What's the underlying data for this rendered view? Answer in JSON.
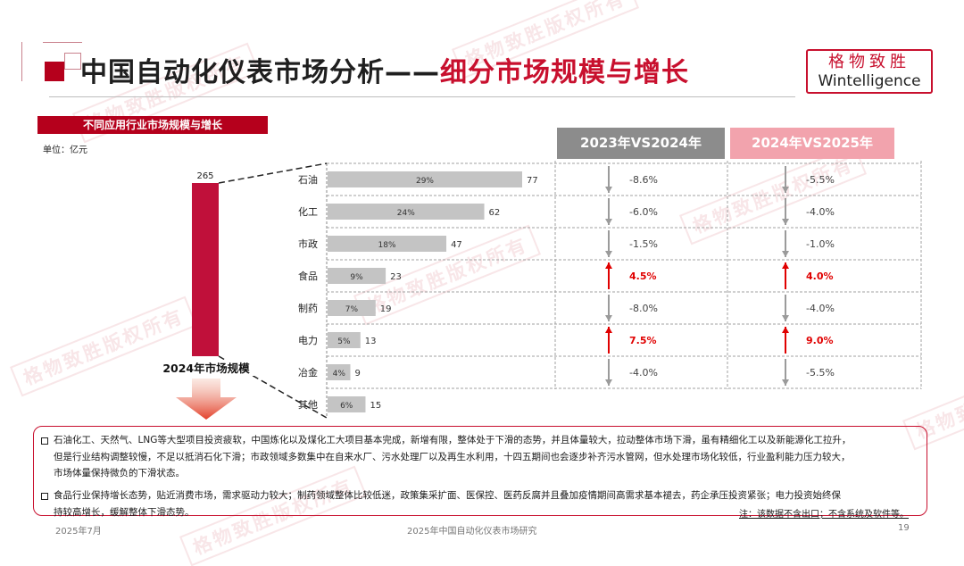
{
  "header": {
    "title_main": "中国自动化仪表市场分析——",
    "title_accent": "细分市场规模与增长",
    "logo_cn": "格物致胜",
    "logo_en": "Wintelligence"
  },
  "watermark_text": "格物致胜版权所有",
  "colors": {
    "accent": "#c8102e",
    "big_bar": "#c0103a",
    "small_bar": "#c4c4c4",
    "down_arrow": "#9b9b9b",
    "up_arrow": "#e00000",
    "col_head_1": "#8c8c8c",
    "col_head_2": "#f2a3ad"
  },
  "chart_data": {
    "type": "bar",
    "title": "不同应用行业市场规模与增长",
    "unit_label": "单位：亿元",
    "total": {
      "label": "2024年市场规模",
      "value": 265
    },
    "categories": [
      "石油",
      "化工",
      "市政",
      "食品",
      "制药",
      "电力",
      "冶金",
      "其他"
    ],
    "values": [
      77,
      62,
      47,
      23,
      19,
      13,
      9,
      15
    ],
    "shares": [
      "29%",
      "24%",
      "18%",
      "9%",
      "7%",
      "5%",
      "4%",
      "6%"
    ],
    "xlim": [
      0,
      77
    ],
    "growth_columns": [
      {
        "header": "2023年VS2024年",
        "values": [
          "-8.6%",
          "-6.0%",
          "-1.5%",
          "4.5%",
          "-8.0%",
          "7.5%",
          "-4.0%",
          ""
        ],
        "directions": [
          "down",
          "down",
          "down",
          "up",
          "down",
          "up",
          "down",
          ""
        ]
      },
      {
        "header": "2024年VS2025年",
        "values": [
          "-5.5%",
          "-4.0%",
          "-1.0%",
          "4.0%",
          "-4.0%",
          "9.0%",
          "-5.5%",
          ""
        ],
        "directions": [
          "down",
          "down",
          "down",
          "up",
          "down",
          "up",
          "down",
          ""
        ]
      }
    ]
  },
  "notes": [
    {
      "lines": [
        "石油化工、天然气、LNG等大型项目投资疲软，中国炼化以及煤化工大项目基本完成，新增有限，整体处于下滑的态势，并且体量较大，拉动整体市场下滑，虽有精细化工以及新能源化工拉升，",
        "但是行业结构调整较慢，不足以抵消石化下滑；市政领域多数集中在自来水厂、污水处理厂以及再生水利用，十四五期间也会逐步补齐污水管网，但水处理市场化较低，行业盈利能力压力较大，",
        "市场体量保持微负的下滑状态。"
      ]
    },
    {
      "lines": [
        "食品行业保持增长态势，贴近消费市场，需求驱动力较大；制药领域整体比较低迷，政策集采扩面、医保控、医药反腐并且叠加疫情期间高需求基本褪去，药企承压投资紧张；电力投资始终保",
        "持较高增长，缓解整体下滑态势。"
      ]
    }
  ],
  "footnote": "注：该数据不含出口；不含系统及软件等。",
  "footer": {
    "date": "2025年7月",
    "report": "2025年中国自动化仪表市场研究",
    "page": "19"
  }
}
